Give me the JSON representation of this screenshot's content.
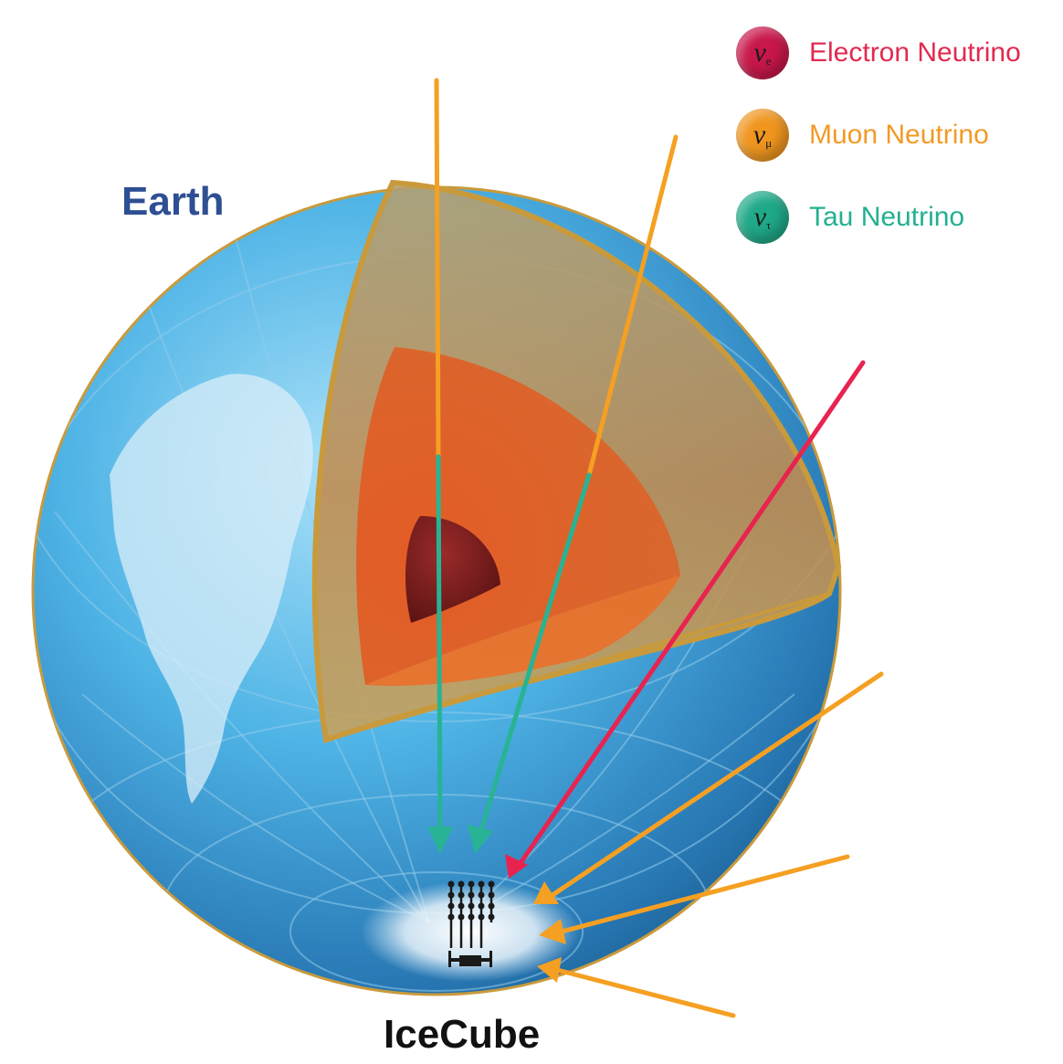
{
  "labels": {
    "earth": "Earth",
    "detector": "IceCube"
  },
  "legend": [
    {
      "name": "Electron Neutrino",
      "symbol": "ν",
      "subscript": "e",
      "dot_color": "#c8174a",
      "text_color": "#e2294f"
    },
    {
      "name": "Muon Neutrino",
      "symbol": "ν",
      "subscript": "μ",
      "dot_color": "#f0961f",
      "text_color": "#f39a26"
    },
    {
      "name": "Tau Neutrino",
      "symbol": "ν",
      "subscript": "τ",
      "dot_color": "#1fa988",
      "text_color": "#22b091"
    }
  ],
  "colors": {
    "ocean": "#3a9fd6",
    "crust": "#c9a64a",
    "mantle": "#e85d24",
    "core": "#7a1e1e",
    "muon_arrow": "#f5a022",
    "electron_arrow": "#e8234f",
    "tau_arrow": "#27b394"
  }
}
